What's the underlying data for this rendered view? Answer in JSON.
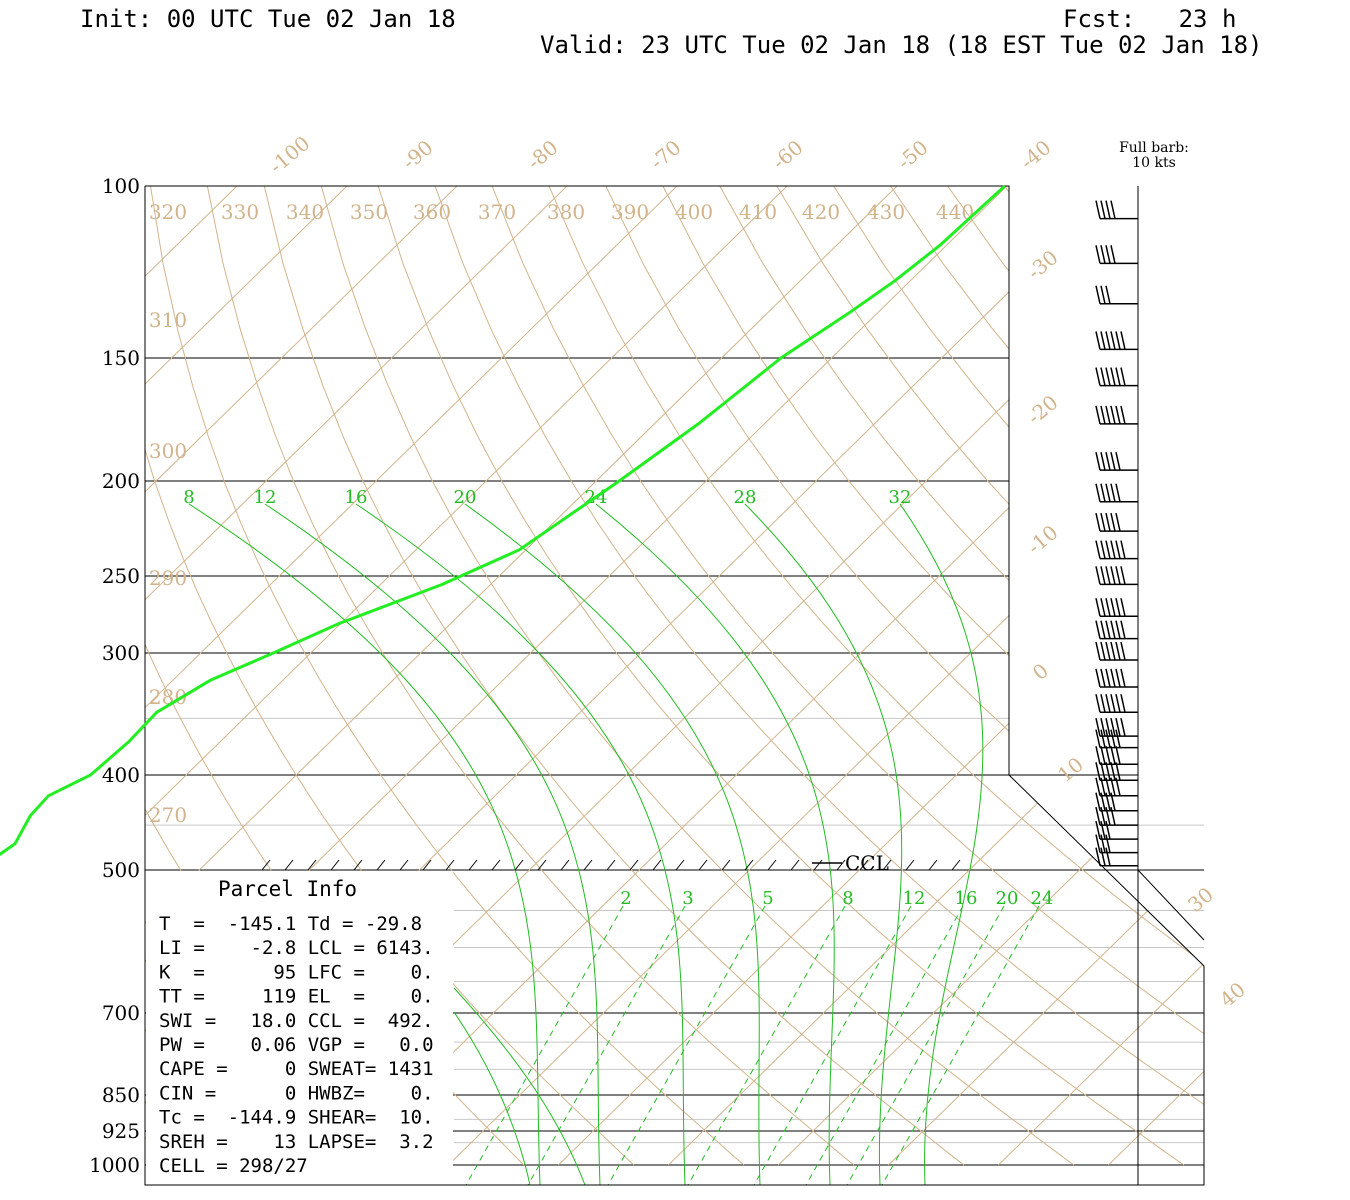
{
  "header": {
    "init": "Init: 00 UTC Tue 02 Jan 18",
    "fcst": "Fcst:   23 h",
    "valid": "Valid: 23 UTC Tue 02 Jan 18 (18 EST Tue 02 Jan 18)"
  },
  "barb_legend": {
    "line1": "Full barb:",
    "line2": "10 kts"
  },
  "parcel_info": {
    "title": "Parcel Info",
    "rows": [
      "T  =  -145.1 Td = -29.8",
      "LI =    -2.8 LCL = 6143.",
      "K  =      95 LFC =    0.",
      "TT =     119 EL  =    0.",
      "SWI =   18.0 CCL =  492.",
      "PW =    0.06 VGP =   0.0",
      "CAPE =     0 SWEAT= 1431",
      "CIN =      0 HWBZ=    0.",
      "Tc =  -144.9 SHEAR=  10.",
      "SREH =    13 LAPSE=  3.2",
      "CELL = 298/27"
    ]
  },
  "ccl_label": "CCL",
  "colors": {
    "isotherm": "#d2b48c",
    "moist": "#22bb22",
    "temp_trace": "#22ee22",
    "isobar": "#000000",
    "barb": "#000000"
  },
  "chart_data": {
    "type": "line",
    "title": "",
    "xlabel": "",
    "ylabel": "",
    "pressure_levels": [
      100,
      150,
      200,
      250,
      300,
      400,
      500,
      700,
      850,
      925,
      1000
    ],
    "pressure_labels": [
      "100",
      "150",
      "200",
      "250",
      "300",
      "400",
      "500",
      "700",
      "850",
      "925",
      "1000"
    ],
    "ylim": [
      1000,
      100
    ],
    "isotherm_labels_top": [
      "-100",
      "-90",
      "-80",
      "-70",
      "-60",
      "-50",
      "-40"
    ],
    "isotherm_labels_right": [
      "-30",
      "-20",
      "-10",
      "0",
      "10",
      "30",
      "40"
    ],
    "theta_labels_top": [
      "320",
      "330",
      "340",
      "350",
      "360",
      "370",
      "380",
      "390",
      "400",
      "410",
      "420",
      "430",
      "440"
    ],
    "theta_labels_left": [
      "310",
      "300",
      "290",
      "280",
      "270"
    ],
    "theta_e_labels": [
      "8",
      "12",
      "16",
      "20",
      "24",
      "28",
      "32"
    ],
    "mixing_ratio_labels": [
      "2",
      "3",
      "5",
      "8",
      "12",
      "16",
      "20",
      "24"
    ],
    "series": [
      {
        "values": [
          {
            "p": 100,
            "t": -40.2
          },
          {
            "p": 115,
            "t": -40.6
          },
          {
            "p": 125,
            "t": -41.4
          },
          {
            "p": 135,
            "t": -42.6
          },
          {
            "p": 150,
            "t": -44.6
          },
          {
            "p": 175,
            "t": -46.0
          },
          {
            "p": 200,
            "t": -47.9
          },
          {
            "p": 235,
            "t": -50.6
          },
          {
            "p": 255,
            "t": -54.4
          },
          {
            "p": 280,
            "t": -60.2
          },
          {
            "p": 300,
            "t": -63.4
          },
          {
            "p": 320,
            "t": -66.6
          },
          {
            "p": 345,
            "t": -68.5
          },
          {
            "p": 370,
            "t": -68.3
          },
          {
            "p": 400,
            "t": -68.7
          },
          {
            "p": 420,
            "t": -70.6
          },
          {
            "p": 440,
            "t": -70.4
          },
          {
            "p": 470,
            "t": -69.2
          },
          {
            "p": 495,
            "t": -70.0
          }
        ]
      }
    ],
    "wind_barbs_kt": {
      "pressure": [
        108,
        120,
        132,
        147,
        160,
        175,
        195,
        210,
        225,
        240,
        255,
        275,
        290,
        305,
        325,
        345,
        365,
        375,
        390,
        405,
        420,
        435,
        450,
        465,
        480,
        495
      ],
      "speed": [
        40,
        40,
        30,
        60,
        60,
        60,
        50,
        50,
        50,
        60,
        70,
        70,
        70,
        70,
        70,
        70,
        70,
        50,
        50,
        50,
        50,
        40,
        40,
        30,
        30,
        30
      ]
    }
  }
}
